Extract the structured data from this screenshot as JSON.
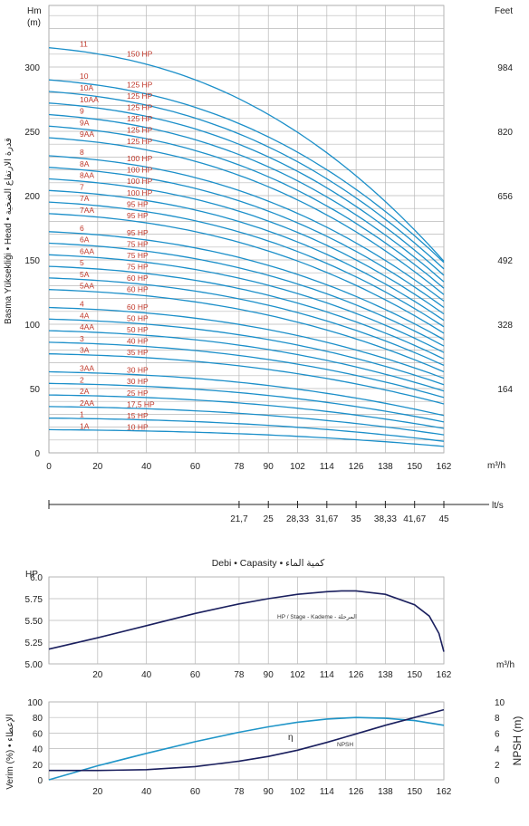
{
  "chart_data": [
    {
      "type": "line",
      "name": "head",
      "ylabel_left": "Hm",
      "ylabel_left_unit": "(m)",
      "ylabel_right": "Feet",
      "yaxis_side_label": "Basma Yüksekliği • Head • قدرة الارتفاع الضخية",
      "xunit": "m³/h",
      "x_ticks": [
        0,
        20,
        40,
        60,
        78,
        90,
        102,
        114,
        126,
        138,
        150,
        162
      ],
      "y_ticks": [
        0,
        50,
        100,
        150,
        200,
        250,
        300
      ],
      "feet_ticks": [
        {
          "label": "164",
          "m": 50
        },
        {
          "label": "328",
          "m": 100
        },
        {
          "label": "492",
          "m": 150
        },
        {
          "label": "656",
          "m": 200
        },
        {
          "label": "820",
          "m": 250
        },
        {
          "label": "984",
          "m": 300
        }
      ],
      "xlim": [
        0,
        162
      ],
      "ylim": [
        0,
        330
      ],
      "grid": true,
      "series": [
        {
          "name": "1A",
          "hp": "10 HP",
          "h0": 18,
          "hend": 5
        },
        {
          "name": "1",
          "hp": "15 HP",
          "h0": 27,
          "hend": 9
        },
        {
          "name": "2AA",
          "hp": "17,5 HP",
          "h0": 36,
          "hend": 14
        },
        {
          "name": "2A",
          "hp": "25 HP",
          "h0": 45,
          "hend": 19
        },
        {
          "name": "2",
          "hp": "30 HP",
          "h0": 54,
          "hend": 24
        },
        {
          "name": "3AA",
          "hp": "30 HP",
          "h0": 63,
          "hend": 29
        },
        {
          "name": "3A",
          "hp": "35 HP",
          "h0": 77,
          "hend": 38
        },
        {
          "name": "3",
          "hp": "40 HP",
          "h0": 86,
          "hend": 43
        },
        {
          "name": "4AA",
          "hp": "50 HP",
          "h0": 95,
          "hend": 48
        },
        {
          "name": "4A",
          "hp": "50 HP",
          "h0": 104,
          "hend": 53
        },
        {
          "name": "4",
          "hp": "60 HP",
          "h0": 113,
          "hend": 58
        },
        {
          "name": "5AA",
          "hp": "60 HP",
          "h0": 127,
          "hend": 63
        },
        {
          "name": "5A",
          "hp": "60 HP",
          "h0": 136,
          "hend": 68
        },
        {
          "name": "5",
          "hp": "75 HP",
          "h0": 145,
          "hend": 73
        },
        {
          "name": "6AA",
          "hp": "75 HP",
          "h0": 154,
          "hend": 78
        },
        {
          "name": "6A",
          "hp": "75 HP",
          "h0": 163,
          "hend": 83
        },
        {
          "name": "6",
          "hp": "95 HP",
          "h0": 172,
          "hend": 88
        },
        {
          "name": "7AA",
          "hp": "95 HP",
          "h0": 186,
          "hend": 93
        },
        {
          "name": "7A",
          "hp": "95 HP",
          "h0": 195,
          "hend": 98
        },
        {
          "name": "7",
          "hp": "100 HP",
          "h0": 204,
          "hend": 103
        },
        {
          "name": "8AA",
          "hp": "100 HP",
          "h0": 213,
          "hend": 108
        },
        {
          "name": "8A",
          "hp": "100 HP",
          "h0": 222,
          "hend": 113
        },
        {
          "name": "8",
          "hp": "100 HP",
          "h0": 231,
          "hend": 118
        },
        {
          "name": "9AA",
          "hp": "125 HP",
          "h0": 245,
          "hend": 123
        },
        {
          "name": "9A",
          "hp": "125 HP",
          "h0": 254,
          "hend": 128
        },
        {
          "name": "9",
          "hp": "125 HP",
          "h0": 263,
          "hend": 133
        },
        {
          "name": "10AA",
          "hp": "125 HP",
          "h0": 272,
          "hend": 138
        },
        {
          "name": "10A",
          "hp": "125 HP",
          "h0": 281,
          "hend": 143
        },
        {
          "name": "10",
          "hp": "125 HP",
          "h0": 290,
          "hend": 148
        },
        {
          "name": "11",
          "hp": "150 HP",
          "h0": 315,
          "hend": 149
        }
      ]
    },
    {
      "type": "axis",
      "name": "flow-lts",
      "unit": "lt/s",
      "ticks": [
        {
          "label": "21,7",
          "x": 78
        },
        {
          "label": "25",
          "x": 90
        },
        {
          "label": "28,33",
          "x": 102
        },
        {
          "label": "31,67",
          "x": 114
        },
        {
          "label": "35",
          "x": 126
        },
        {
          "label": "38,33",
          "x": 138
        },
        {
          "label": "41,67",
          "x": 150
        },
        {
          "label": "45",
          "x": 162
        }
      ]
    },
    {
      "type": "line",
      "name": "power",
      "title": "Debi • Capasity • كمية الماء",
      "ylabel": "HP",
      "xunit": "m³/h",
      "annotation": "HP / Stage - Kademe - المرحلة",
      "x_ticks": [
        20,
        40,
        60,
        78,
        90,
        102,
        114,
        126,
        138,
        150,
        162
      ],
      "y_ticks": [
        "5.00",
        "5.25",
        "5.50",
        "5.75",
        "6.0"
      ],
      "xlim": [
        0,
        162
      ],
      "ylim": [
        5.0,
        6.0
      ],
      "color": "#1a1f5e",
      "series": [
        {
          "x": [
            0,
            20,
            40,
            60,
            78,
            90,
            102,
            114,
            120,
            126,
            138,
            150,
            156,
            160,
            162
          ],
          "y": [
            5.17,
            5.3,
            5.44,
            5.58,
            5.69,
            5.75,
            5.8,
            5.83,
            5.84,
            5.84,
            5.8,
            5.68,
            5.55,
            5.35,
            5.14
          ]
        }
      ]
    },
    {
      "type": "line",
      "name": "efficiency-npsh",
      "ylabel_left": "Verim (%) • الإعطاء",
      "ylabel_right": "NPSH (m)",
      "x_ticks": [
        20,
        40,
        60,
        78,
        90,
        102,
        114,
        126,
        138,
        150,
        162
      ],
      "y_ticks_left": [
        0,
        20,
        40,
        60,
        80,
        100
      ],
      "y_ticks_right": [
        0,
        2,
        4,
        6,
        8,
        10
      ],
      "xlim": [
        0,
        162
      ],
      "series": [
        {
          "name": "η",
          "color": "#1f95c8",
          "x": [
            0,
            20,
            40,
            60,
            78,
            90,
            102,
            114,
            126,
            138,
            150,
            162
          ],
          "y": [
            0,
            18,
            34,
            49,
            61,
            68,
            74,
            78,
            80,
            79,
            76,
            70
          ]
        },
        {
          "name": "NPSH",
          "color": "#1a1f5e",
          "x": [
            0,
            20,
            40,
            60,
            78,
            90,
            102,
            114,
            126,
            138,
            150,
            162
          ],
          "y": [
            1.2,
            1.2,
            1.3,
            1.7,
            2.4,
            3.0,
            3.8,
            4.8,
            5.9,
            7.0,
            8.0,
            9.0
          ]
        }
      ]
    }
  ],
  "colors": {
    "curve": "#1b8fc9",
    "label": "#c0392b",
    "dark": "#1a1f5e"
  }
}
